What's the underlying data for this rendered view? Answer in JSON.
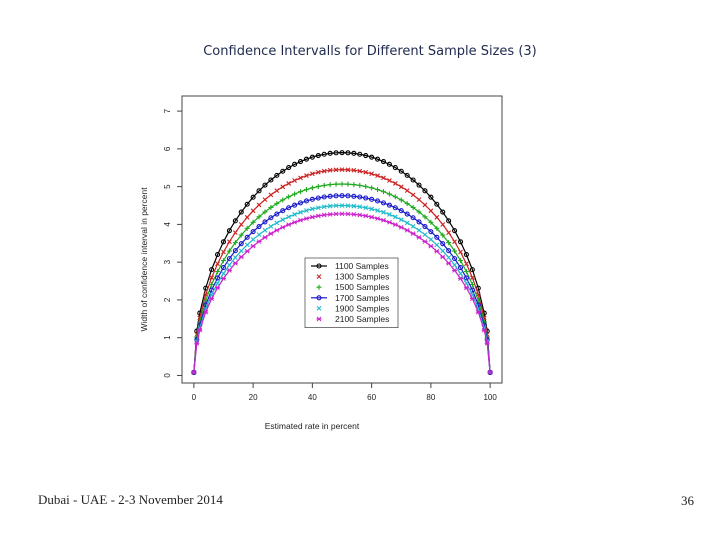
{
  "slide": {
    "title": "Confidence Intervalls for Different Sample Sizes (3)",
    "footer_left": "Dubai - UAE - 2-3 November 2014",
    "page_number": "36"
  },
  "chart_data": {
    "type": "line",
    "title": "",
    "xlabel": "Estimated rate in percent",
    "ylabel": "Width of confidence interval in percent",
    "xlim": [
      -4,
      104
    ],
    "ylim": [
      -0.2,
      7.4
    ],
    "xticks": [
      0,
      20,
      40,
      60,
      80,
      100
    ],
    "yticks": [
      0,
      1,
      2,
      3,
      4,
      5,
      6,
      7
    ],
    "legend_position": "center-right",
    "series": [
      {
        "name": "1100 Samples",
        "color": "#000000",
        "marker": "circle",
        "peak_width": 5.9
      },
      {
        "name": "1300 Samples",
        "color": "#cc2222",
        "marker": "x",
        "peak_width": 5.45
      },
      {
        "name": "1500 Samples",
        "color": "#22aa22",
        "marker": "plus",
        "peak_width": 5.07
      },
      {
        "name": "1700 Samples",
        "color": "#1a1acc",
        "marker": "circle",
        "peak_width": 4.76
      },
      {
        "name": "1900 Samples",
        "color": "#22bbcc",
        "marker": "x",
        "peak_width": 4.5
      },
      {
        "name": "2100 Samples",
        "color": "#cc22cc",
        "marker": "star",
        "peak_width": 4.28
      }
    ],
    "x": [
      0,
      1,
      2,
      4,
      6,
      8,
      10,
      12,
      14,
      16,
      18,
      20,
      22,
      24,
      26,
      28,
      30,
      32,
      34,
      36,
      38,
      40,
      42,
      44,
      46,
      48,
      50,
      52,
      54,
      56,
      58,
      60,
      62,
      64,
      66,
      68,
      70,
      72,
      74,
      76,
      78,
      80,
      82,
      84,
      86,
      88,
      90,
      92,
      94,
      96,
      98,
      99,
      100
    ]
  }
}
